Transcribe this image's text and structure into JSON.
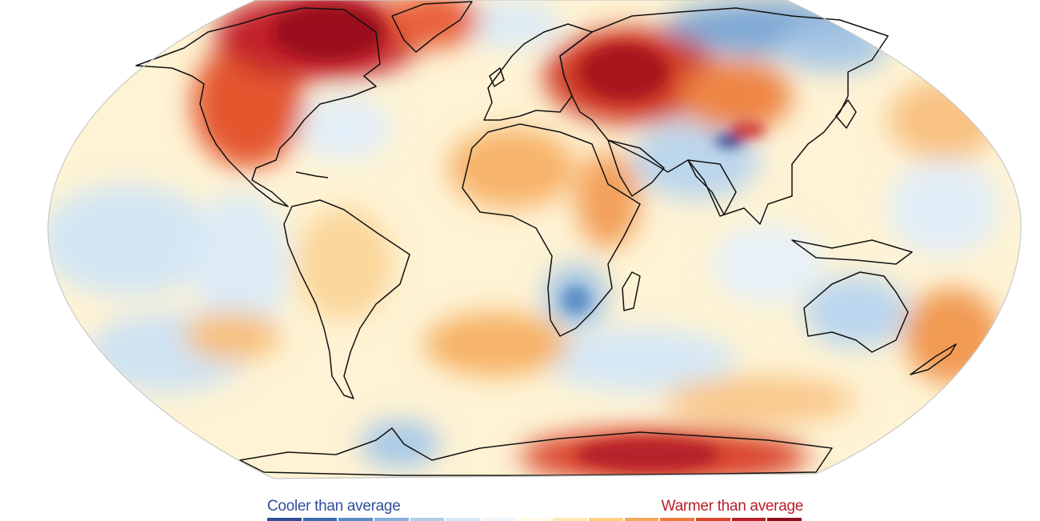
{
  "legend": {
    "cool_label": "Cooler than average",
    "warm_label": "Warmer than average",
    "cool_color": "#2f4f9a",
    "warm_color": "#b81f27",
    "scale_colors": [
      "#2c4f97",
      "#3e69ae",
      "#5a8cc6",
      "#84b0d9",
      "#b0cfe8",
      "#d8e8f4",
      "#eef5fb",
      "#fffbe6",
      "#fde9b4",
      "#fbd185",
      "#f6a85c",
      "#ee7a3c",
      "#d9482a",
      "#b81f27",
      "#8d0f1a"
    ]
  },
  "map": {
    "projection": "robinson",
    "background_color": "#fef5d8",
    "coastline_color": "#111111",
    "anomaly_regions": [
      {
        "name": "north-america-canada",
        "level": "very-warm"
      },
      {
        "name": "greenland-arctic",
        "level": "very-warm"
      },
      {
        "name": "russia-central-asia",
        "level": "very-warm"
      },
      {
        "name": "eastern-siberia",
        "level": "cool"
      },
      {
        "name": "tibetan-plateau",
        "level": "very-cool"
      },
      {
        "name": "south-asia",
        "level": "cool"
      },
      {
        "name": "north-africa-sahara",
        "level": "warm"
      },
      {
        "name": "east-africa",
        "level": "warm"
      },
      {
        "name": "southern-africa",
        "level": "cool"
      },
      {
        "name": "south-atlantic",
        "level": "warm"
      },
      {
        "name": "australia",
        "level": "cool"
      },
      {
        "name": "tasman-sea-new-zealand",
        "level": "warm"
      },
      {
        "name": "east-antarctica",
        "level": "very-warm"
      },
      {
        "name": "antarctic-peninsula",
        "level": "cool"
      },
      {
        "name": "central-pacific",
        "level": "cool"
      },
      {
        "name": "north-pacific",
        "level": "warm"
      }
    ]
  }
}
